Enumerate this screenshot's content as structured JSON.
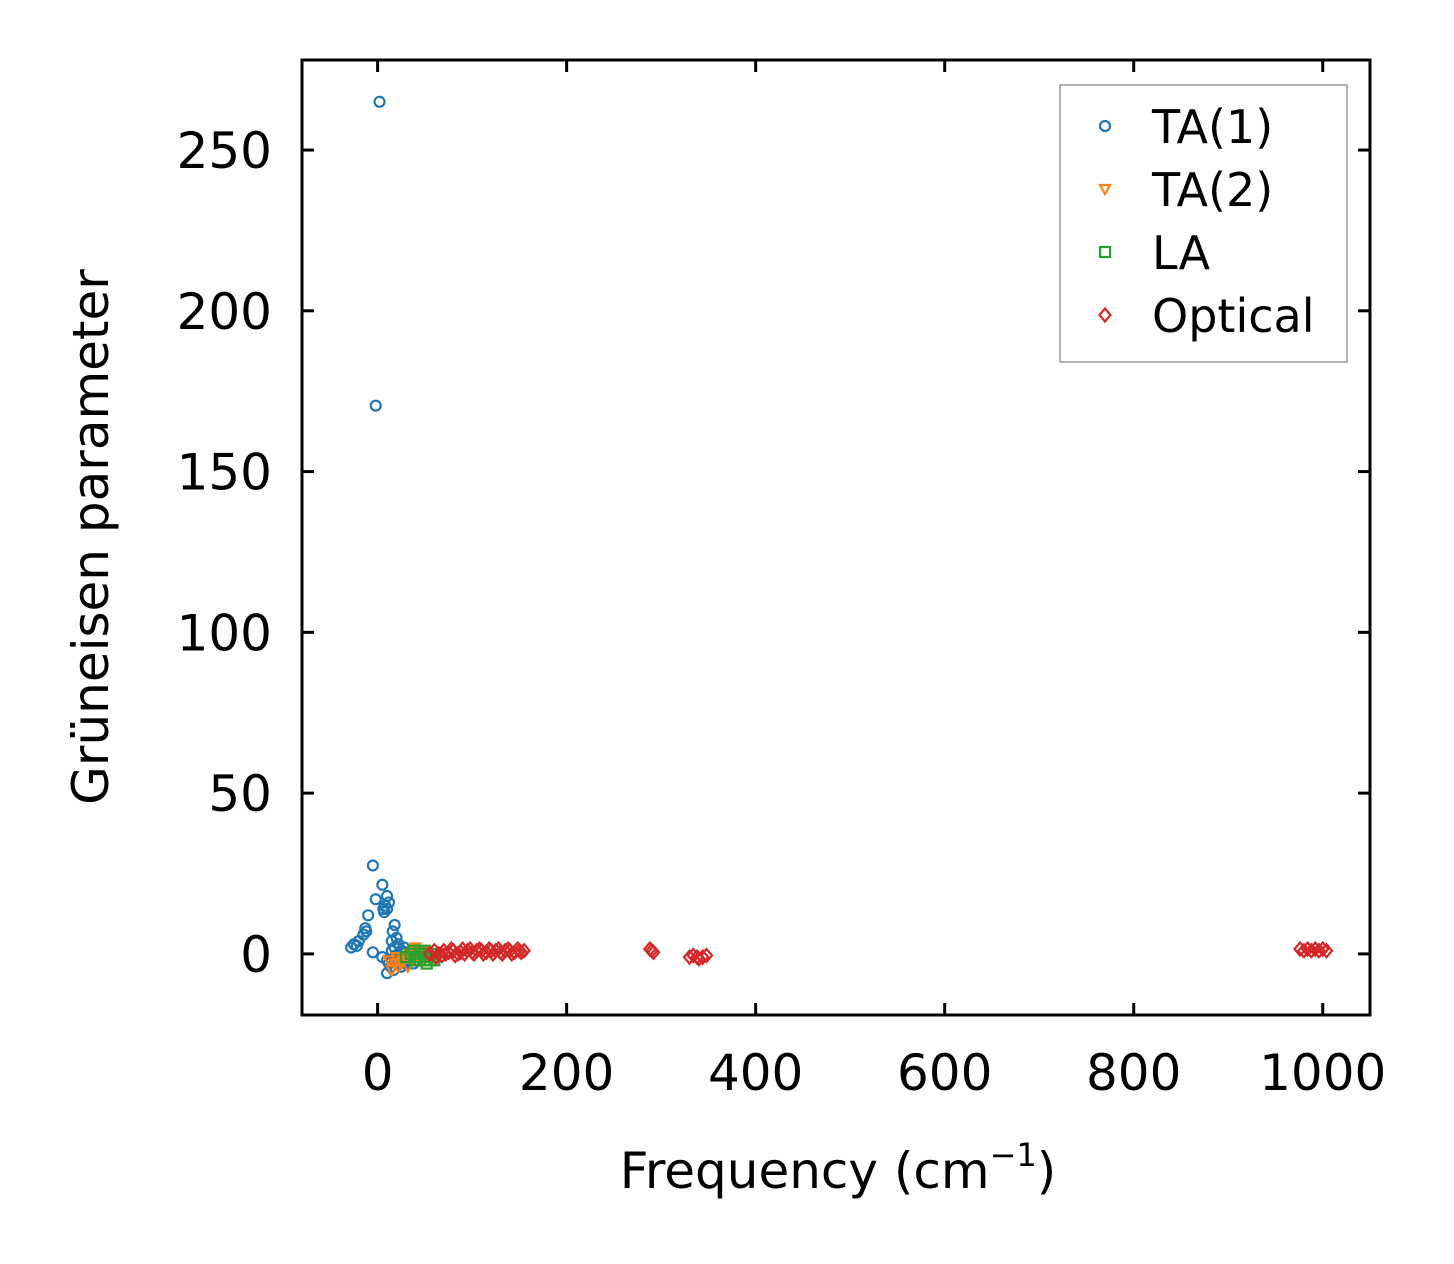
{
  "chart_data": {
    "type": "scatter",
    "title": "",
    "xlabel": "Frequency (cm",
    "xlabel_sup": "−1",
    "xlabel_close": ")",
    "ylabel": "Grüneisen parameter",
    "xlim": [
      -80,
      1050
    ],
    "ylim": [
      -19,
      278
    ],
    "xticks": [
      0,
      200,
      400,
      600,
      800,
      1000
    ],
    "xtick_labels": [
      "0",
      "200",
      "400",
      "600",
      "800",
      "1000"
    ],
    "yticks": [
      0,
      50,
      100,
      150,
      200,
      250
    ],
    "ytick_labels": [
      "0",
      "50",
      "100",
      "150",
      "200",
      "250"
    ],
    "grid": false,
    "legend_position": "top-right",
    "series": [
      {
        "name": "TA(1)",
        "marker": "circle",
        "color": "#1f77b4",
        "points": [
          [
            2,
            265
          ],
          [
            -2,
            170.5
          ],
          [
            -5,
            27.5
          ],
          [
            5,
            21.5
          ],
          [
            10,
            18
          ],
          [
            12,
            16
          ],
          [
            -2,
            17
          ],
          [
            8,
            15
          ],
          [
            6,
            14
          ],
          [
            10,
            14
          ],
          [
            7,
            13
          ],
          [
            -10,
            12
          ],
          [
            18,
            9
          ],
          [
            -13,
            8
          ],
          [
            -12,
            7
          ],
          [
            16,
            7
          ],
          [
            -15,
            6
          ],
          [
            20,
            5
          ],
          [
            -20,
            4
          ],
          [
            -25,
            3
          ],
          [
            -28,
            2
          ],
          [
            -22,
            2.5
          ],
          [
            15,
            4
          ],
          [
            22,
            3
          ],
          [
            18,
            2
          ],
          [
            25,
            1
          ],
          [
            28,
            2
          ],
          [
            30,
            0.5
          ],
          [
            -5,
            0.5
          ],
          [
            5,
            -1
          ],
          [
            10,
            -2
          ],
          [
            12,
            -3
          ],
          [
            14,
            -4
          ],
          [
            10,
            -6
          ],
          [
            20,
            -2
          ],
          [
            24,
            -1
          ],
          [
            26,
            0
          ],
          [
            32,
            -1
          ],
          [
            35,
            -2
          ],
          [
            38,
            -3
          ],
          [
            40,
            -1
          ],
          [
            15,
            1
          ],
          [
            19,
            -0.5
          ],
          [
            22,
            -1.5
          ],
          [
            28,
            -2.5
          ],
          [
            34,
            0
          ],
          [
            36,
            -1.5
          ],
          [
            30,
            -3
          ],
          [
            25,
            -4
          ],
          [
            17,
            -5
          ]
        ]
      },
      {
        "name": "TA(2)",
        "marker": "triangle-down",
        "color": "#ff7f0e",
        "points": [
          [
            12,
            -2
          ],
          [
            15,
            -5
          ],
          [
            18,
            -3
          ],
          [
            22,
            -4
          ],
          [
            26,
            -2
          ],
          [
            30,
            -1
          ],
          [
            34,
            0
          ],
          [
            38,
            1
          ],
          [
            40,
            2
          ],
          [
            42,
            1
          ],
          [
            45,
            0
          ],
          [
            20,
            -1
          ],
          [
            25,
            -3
          ],
          [
            28,
            -2
          ],
          [
            32,
            -4
          ],
          [
            36,
            -1
          ],
          [
            38,
            -2
          ],
          [
            44,
            -1
          ],
          [
            46,
            0.5
          ],
          [
            48,
            1
          ]
        ]
      },
      {
        "name": "LA",
        "marker": "square",
        "color": "#2ca02c",
        "points": [
          [
            30,
            -1
          ],
          [
            35,
            0
          ],
          [
            40,
            -2
          ],
          [
            42,
            -1
          ],
          [
            45,
            -2
          ],
          [
            48,
            0
          ],
          [
            50,
            -1
          ],
          [
            52,
            -3
          ],
          [
            55,
            -2
          ],
          [
            56,
            0
          ],
          [
            58,
            -1
          ],
          [
            60,
            -2
          ],
          [
            38,
            1
          ],
          [
            44,
            1
          ],
          [
            50,
            1
          ]
        ]
      },
      {
        "name": "Optical",
        "marker": "diamond",
        "color": "#d62728",
        "points": [
          [
            55,
            0
          ],
          [
            60,
            1
          ],
          [
            65,
            0
          ],
          [
            70,
            1
          ],
          [
            75,
            0.5
          ],
          [
            80,
            1
          ],
          [
            85,
            0
          ],
          [
            90,
            1.5
          ],
          [
            95,
            1
          ],
          [
            100,
            0.5
          ],
          [
            105,
            1
          ],
          [
            110,
            1
          ],
          [
            115,
            0.5
          ],
          [
            120,
            1
          ],
          [
            125,
            1
          ],
          [
            130,
            0.5
          ],
          [
            135,
            1
          ],
          [
            140,
            1
          ],
          [
            145,
            0.5
          ],
          [
            150,
            1
          ],
          [
            62,
            -1
          ],
          [
            68,
            -0.5
          ],
          [
            72,
            0
          ],
          [
            78,
            1.5
          ],
          [
            82,
            -0.5
          ],
          [
            88,
            0.5
          ],
          [
            92,
            0
          ],
          [
            98,
            1.5
          ],
          [
            102,
            0
          ],
          [
            108,
            1.5
          ],
          [
            112,
            0
          ],
          [
            118,
            1.5
          ],
          [
            122,
            0
          ],
          [
            128,
            1.5
          ],
          [
            132,
            0
          ],
          [
            138,
            1.5
          ],
          [
            142,
            0
          ],
          [
            148,
            1.5
          ],
          [
            152,
            0.5
          ],
          [
            155,
            1
          ],
          [
            288,
            1.5
          ],
          [
            290,
            1
          ],
          [
            292,
            0.5
          ],
          [
            330,
            -1
          ],
          [
            334,
            -0.5
          ],
          [
            338,
            -1
          ],
          [
            340,
            -1.5
          ],
          [
            344,
            -1
          ],
          [
            348,
            -0.5
          ],
          [
            976,
            1.5
          ],
          [
            980,
            1
          ],
          [
            984,
            1.5
          ],
          [
            988,
            1
          ],
          [
            992,
            1.5
          ],
          [
            996,
            1
          ],
          [
            1000,
            1.5
          ],
          [
            1004,
            1
          ]
        ]
      }
    ]
  }
}
